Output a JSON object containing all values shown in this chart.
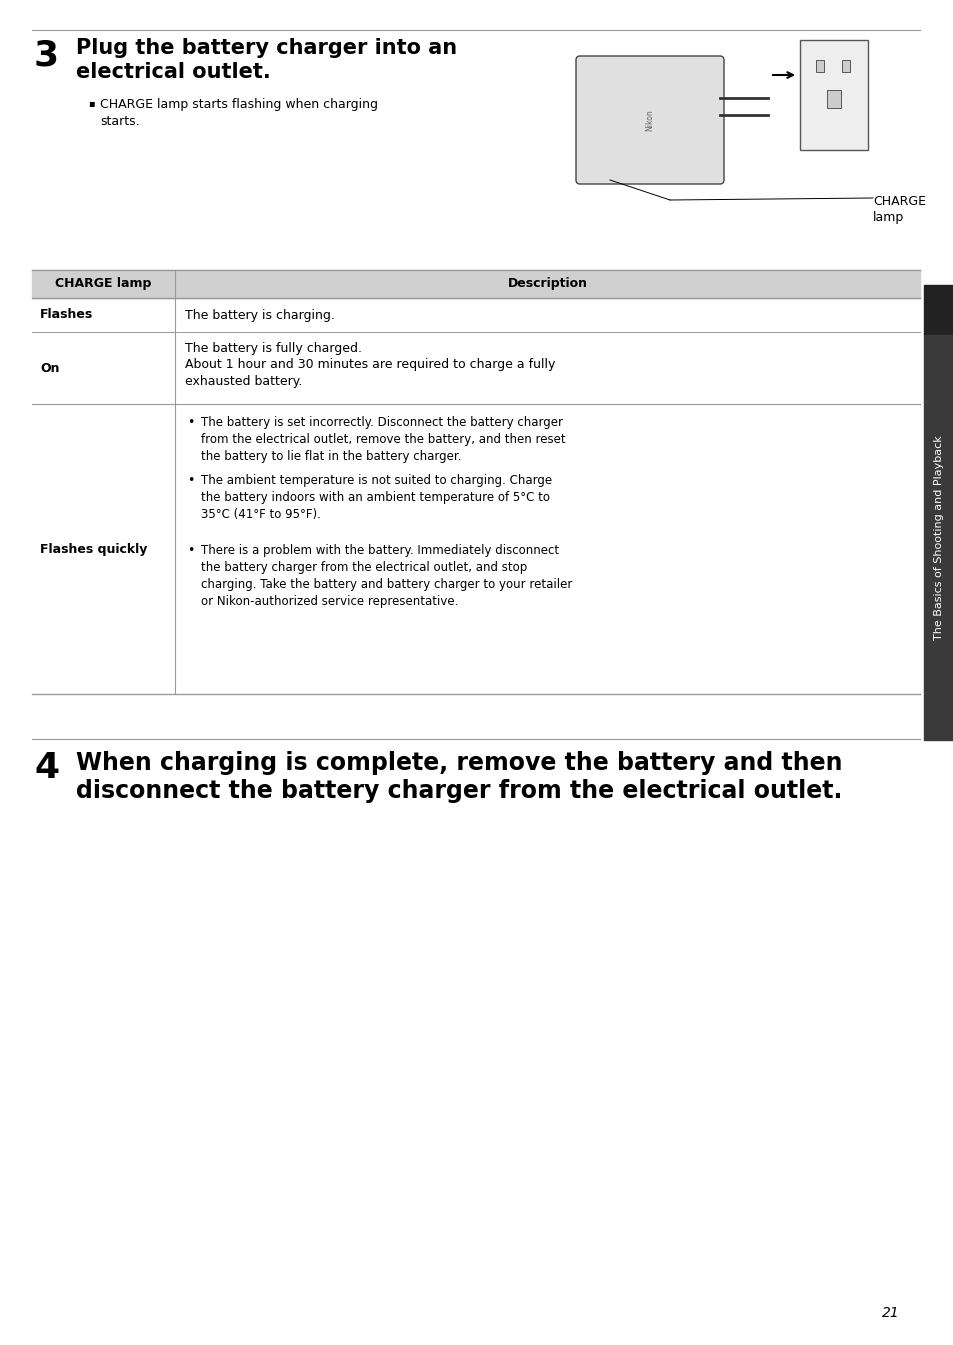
{
  "bg_color": "#ffffff",
  "page_number": "21",
  "step3_number": "3",
  "step3_title_line1": "Plug the battery charger into an",
  "step3_title_line2": "electrical outlet.",
  "step3_bullet": "CHARGE lamp starts flashing when charging\nstarts.",
  "charge_label_line1": "CHARGE",
  "charge_label_line2": "lamp",
  "table_header_col1": "CHARGE lamp",
  "table_header_col2": "Description",
  "table_header_bg": "#d0d0d0",
  "table_row1_col1": "Flashes",
  "table_row1_col2": "The battery is charging.",
  "table_row2_col1": "On",
  "table_row2_col2_line1": "The battery is fully charged.",
  "table_row2_col2_line2": "About 1 hour and 30 minutes are required to charge a fully\nexhausted battery.",
  "table_row3_col1": "Flashes quickly",
  "table_row3_col2_bullet1": "The battery is set incorrectly. Disconnect the battery charger\nfrom the electrical outlet, remove the battery, and then reset\nthe battery to lie flat in the battery charger.",
  "table_row3_col2_bullet2": "The ambient temperature is not suited to charging. Charge\nthe battery indoors with an ambient temperature of 5°C to\n35°C (41°F to 95°F).",
  "table_row3_col2_bullet3": "There is a problem with the battery. Immediately disconnect\nthe battery charger from the electrical outlet, and stop\ncharging. Take the battery and battery charger to your retailer\nor Nikon-authorized service representative.",
  "step4_number": "4",
  "step4_line1": "When charging is complete, remove the battery and then",
  "step4_line2": "disconnect the battery charger from the electrical outlet.",
  "sidebar_text": "The Basics of Shooting and Playback",
  "sidebar_bg": "#3a3a3a",
  "sidebar_text_color": "#ffffff",
  "dark_block_bg": "#222222",
  "line_color": "#999999",
  "table_line_color": "#999999",
  "body_font_size": 9.0,
  "small_font_size": 8.5,
  "title_font_size": 15,
  "step_num_font_size": 26,
  "step4_title_font_size": 17
}
